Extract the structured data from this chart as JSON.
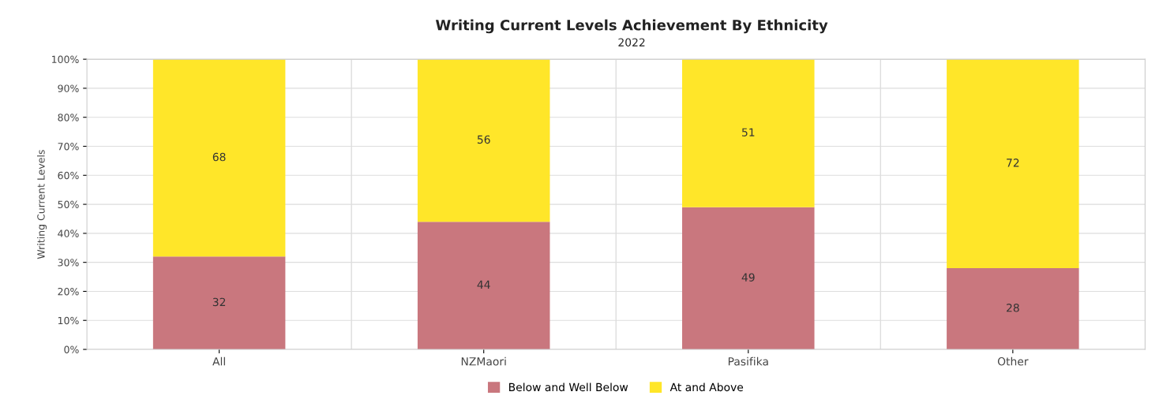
{
  "chart_data": {
    "type": "bar",
    "title": "Writing Current Levels Achievement By Ethnicity",
    "subtitle": "2022",
    "ylabel": "Writing Current Levels",
    "categories": [
      "All",
      "NZMaori",
      "Pasifika",
      "Other"
    ],
    "series": [
      {
        "name": "Below and Well Below",
        "color": "#c9777e",
        "values": [
          32,
          44,
          49,
          28
        ]
      },
      {
        "name": "At and Above",
        "color": "#ffe629",
        "values": [
          68,
          56,
          51,
          72
        ]
      }
    ],
    "stacked": true,
    "data_labels": true,
    "grid": true,
    "legend": "bottom",
    "ylim": [
      0,
      100
    ],
    "yticks": [
      {
        "value": 0,
        "label": "0%"
      },
      {
        "value": 10,
        "label": "10%"
      },
      {
        "value": 20,
        "label": "20%"
      },
      {
        "value": 30,
        "label": "30%"
      },
      {
        "value": 40,
        "label": "40%"
      },
      {
        "value": 50,
        "label": "50%"
      },
      {
        "value": 60,
        "label": "60%"
      },
      {
        "value": 70,
        "label": "70%"
      },
      {
        "value": 80,
        "label": "80%"
      },
      {
        "value": 90,
        "label": "90%"
      },
      {
        "value": 100,
        "label": "100%"
      }
    ]
  }
}
